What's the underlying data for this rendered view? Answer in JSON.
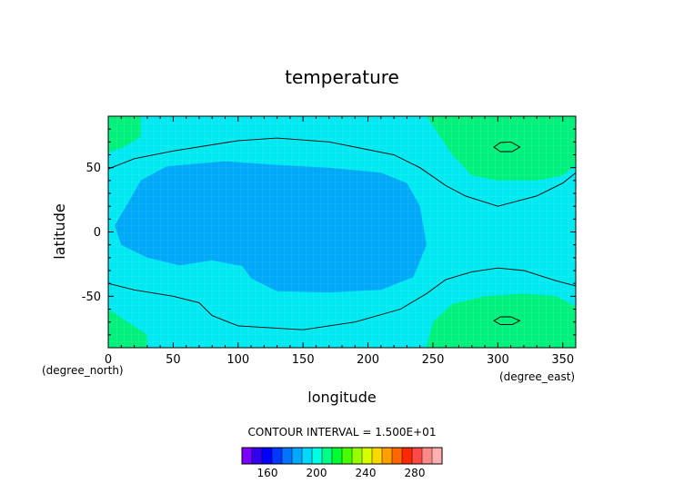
{
  "chart_data": {
    "type": "heatmap",
    "title": "temperature",
    "xlabel": "longitude",
    "ylabel": "latitude",
    "x_unit": "(degree_east)",
    "y_unit": "(degree_north)",
    "xlim": [
      0,
      360
    ],
    "ylim": [
      -90,
      90
    ],
    "x_ticks": [
      "0",
      "50",
      "100",
      "150",
      "200",
      "250",
      "300",
      "350"
    ],
    "y_ticks": [
      "-50",
      "0",
      "50"
    ],
    "contour_interval_text": "CONTOUR INTERVAL = 1.500E+01",
    "colorbar_ticks": [
      "160",
      "200",
      "240",
      "280"
    ],
    "colorbar_colors": [
      "#7b00ff",
      "#3500f0",
      "#0000ff",
      "#0038ff",
      "#0073ff",
      "#00a8ff",
      "#00d8ff",
      "#00ffe0",
      "#00ff88",
      "#00ff30",
      "#48ff00",
      "#98ff00",
      "#d8ff00",
      "#ffd800",
      "#ffa000",
      "#ff6800",
      "#ff2800",
      "#ff4848",
      "#ff8888",
      "#ffb0b0"
    ],
    "field_levels": [
      {
        "name": "200-215",
        "color": "#00e8f0"
      },
      {
        "name": "185-200",
        "color": "#00a8f8"
      },
      {
        "name": "215-230",
        "color": "#00f07c"
      }
    ],
    "contours": [
      {
        "level": 215,
        "points": [
          [
            0,
            49
          ],
          [
            20,
            57
          ],
          [
            50,
            63
          ],
          [
            100,
            71
          ],
          [
            130,
            73
          ],
          [
            170,
            70
          ],
          [
            220,
            60
          ],
          [
            240,
            50
          ],
          [
            260,
            36
          ],
          [
            275,
            28
          ],
          [
            300,
            20
          ],
          [
            330,
            28
          ],
          [
            350,
            38
          ],
          [
            360,
            46
          ]
        ]
      },
      {
        "level": 215,
        "points": [
          [
            0,
            -40
          ],
          [
            20,
            -45
          ],
          [
            50,
            -50
          ],
          [
            70,
            -55
          ],
          [
            80,
            -65
          ],
          [
            100,
            -73
          ],
          [
            150,
            -76
          ],
          [
            190,
            -70
          ],
          [
            225,
            -60
          ],
          [
            245,
            -48
          ],
          [
            260,
            -37
          ],
          [
            280,
            -31
          ],
          [
            300,
            -28
          ],
          [
            320,
            -30
          ],
          [
            345,
            -38
          ],
          [
            360,
            -42
          ]
        ]
      },
      {
        "level": 230,
        "closed": true,
        "points": [
          [
            297,
            66
          ],
          [
            302,
            69.5
          ],
          [
            310,
            70
          ],
          [
            317,
            66
          ],
          [
            311,
            62.5
          ],
          [
            302,
            62.5
          ]
        ]
      },
      {
        "level": 230,
        "closed": true,
        "points": [
          [
            297,
            -69
          ],
          [
            302,
            -66
          ],
          [
            310,
            -66
          ],
          [
            317,
            -69
          ],
          [
            311,
            -72
          ],
          [
            302,
            -72
          ]
        ]
      }
    ],
    "filled_regions": [
      {
        "level": "185-200",
        "points": [
          [
            5,
            5
          ],
          [
            15,
            22
          ],
          [
            25,
            40
          ],
          [
            45,
            51
          ],
          [
            90,
            55
          ],
          [
            130,
            52
          ],
          [
            170,
            50
          ],
          [
            210,
            46
          ],
          [
            230,
            38
          ],
          [
            240,
            20
          ],
          [
            245,
            -10
          ],
          [
            235,
            -35
          ],
          [
            210,
            -45
          ],
          [
            170,
            -47
          ],
          [
            130,
            -46
          ],
          [
            110,
            -36
          ],
          [
            100,
            -22
          ],
          [
            105,
            -10
          ],
          [
            115,
            -5
          ],
          [
            115,
            -15
          ],
          [
            120,
            -12
          ],
          [
            112,
            -28
          ],
          [
            95,
            -25
          ],
          [
            80,
            -22
          ],
          [
            55,
            -26
          ],
          [
            30,
            -20
          ],
          [
            10,
            -10
          ]
        ]
      },
      {
        "level": "215-230",
        "points": [
          [
            0,
            90
          ],
          [
            25,
            90
          ],
          [
            25,
            74
          ],
          [
            12,
            66
          ],
          [
            0,
            62
          ]
        ]
      },
      {
        "level": "215-230",
        "points": [
          [
            0,
            -90
          ],
          [
            30,
            -90
          ],
          [
            30,
            -80
          ],
          [
            15,
            -70
          ],
          [
            0,
            -60
          ]
        ]
      },
      {
        "level": "215-230",
        "points": [
          [
            245,
            90
          ],
          [
            360,
            90
          ],
          [
            360,
            52
          ],
          [
            350,
            44
          ],
          [
            330,
            40
          ],
          [
            300,
            40
          ],
          [
            280,
            44
          ],
          [
            265,
            60
          ],
          [
            245,
            90
          ]
        ]
      },
      {
        "level": "215-230",
        "points": [
          [
            245,
            -90
          ],
          [
            360,
            -90
          ],
          [
            360,
            -58
          ],
          [
            345,
            -50
          ],
          [
            320,
            -48
          ],
          [
            290,
            -50
          ],
          [
            265,
            -56
          ],
          [
            250,
            -70
          ],
          [
            245,
            -90
          ]
        ]
      }
    ]
  }
}
